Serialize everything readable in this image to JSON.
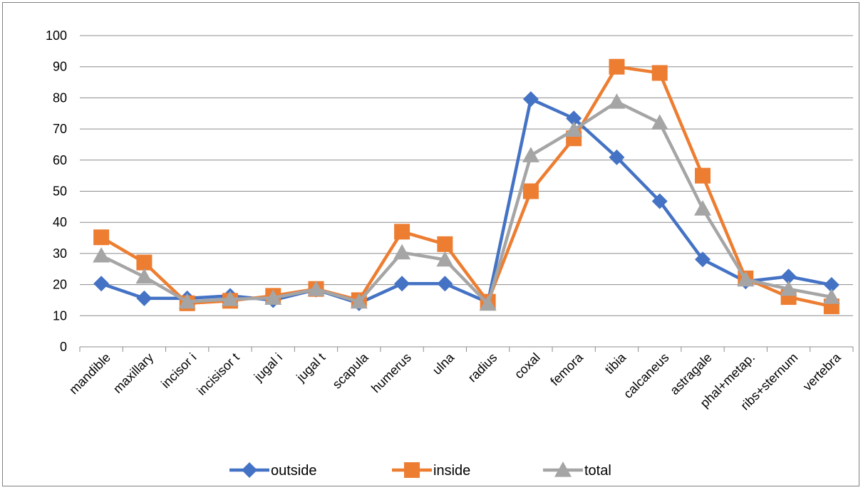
{
  "chart_data": {
    "type": "line",
    "title": "",
    "xlabel": "",
    "ylabel": "",
    "ylim": [
      0,
      100
    ],
    "yticks": [
      0,
      10,
      20,
      30,
      40,
      50,
      60,
      70,
      80,
      90,
      100
    ],
    "grid": "horizontal",
    "legend_position": "bottom",
    "categories": [
      "mandible",
      "maxillary",
      "incisor i",
      "incisisor t",
      "jugal i",
      "jugal t",
      "scapula",
      "humerus",
      "ulna",
      "radius",
      "coxal",
      "femora",
      "tibia",
      "calcaneus",
      "astragale",
      "phal+metap.",
      "ribs+sternum",
      "vertebra"
    ],
    "series": [
      {
        "name": "outside",
        "color": "#4472C4",
        "marker": "diamond",
        "values": [
          20.3,
          15.6,
          15.6,
          16.4,
          15.0,
          18.4,
          14.0,
          20.3,
          20.3,
          14.3,
          79.6,
          73.4,
          60.9,
          46.8,
          28.1,
          21.0,
          22.6,
          19.9
        ]
      },
      {
        "name": "inside",
        "color": "#ED7D31",
        "marker": "square",
        "values": [
          35.2,
          27.1,
          14.0,
          14.8,
          16.4,
          18.6,
          15.0,
          37.0,
          33.0,
          14.5,
          50.0,
          67.0,
          90.0,
          88.0,
          55.0,
          22.0,
          16.0,
          13.0
        ]
      },
      {
        "name": "total",
        "color": "#A5A5A5",
        "marker": "triangle",
        "values": [
          29.3,
          22.5,
          14.5,
          15.3,
          15.7,
          18.5,
          14.5,
          30.3,
          28.0,
          13.8,
          61.5,
          69.7,
          78.7,
          72.0,
          44.4,
          21.6,
          18.6,
          16.0
        ]
      }
    ]
  }
}
